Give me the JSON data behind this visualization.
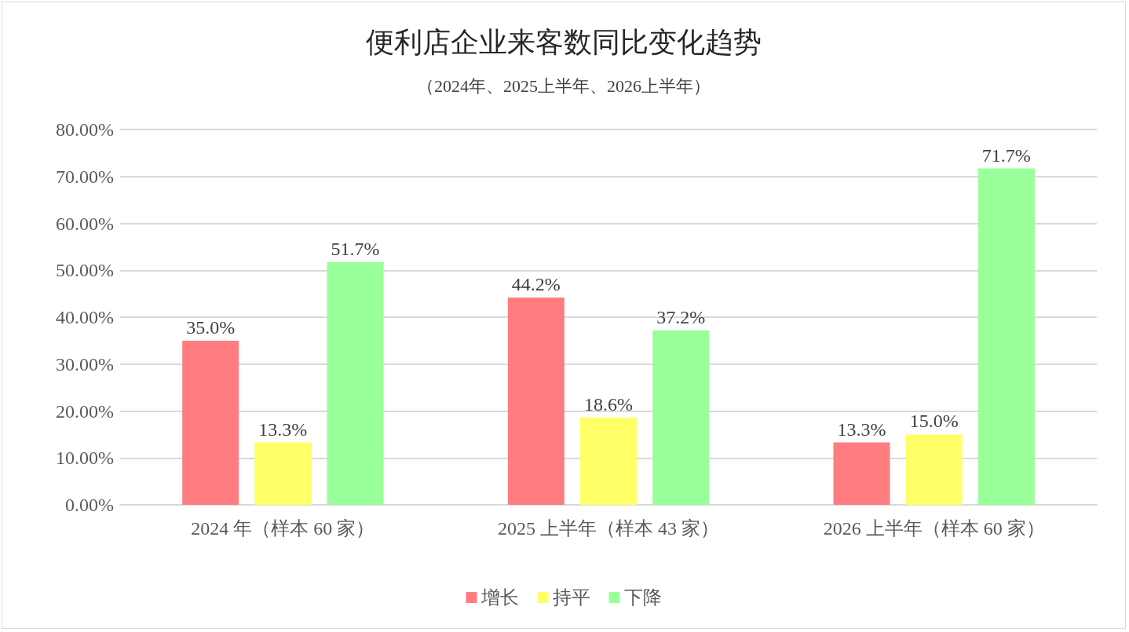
{
  "chart_data": {
    "type": "bar",
    "title": "便利店企业来客数同比变化趋势",
    "subtitle": "（2024年、2025上半年、2026上半年）",
    "categories": [
      "2024 年（样本 60 家）",
      "2025 上半年（样本 43 家）",
      "2026 上半年（样本 60 家）"
    ],
    "series": [
      {
        "name": "增长",
        "color": "#ff7c80",
        "values": [
          35.0,
          44.2,
          13.3
        ],
        "value_labels": [
          "35.0%",
          "44.2%",
          "13.3%"
        ]
      },
      {
        "name": "持平",
        "color": "#ffff66",
        "values": [
          13.3,
          18.6,
          15.0
        ],
        "value_labels": [
          "13.3%",
          "18.6%",
          "15.0%"
        ]
      },
      {
        "name": "下降",
        "color": "#99ff99",
        "values": [
          51.7,
          37.2,
          71.7
        ],
        "value_labels": [
          "51.7%",
          "37.2%",
          "71.7%"
        ]
      }
    ],
    "ylim": [
      0,
      80
    ],
    "yticks": [
      {
        "value": 0,
        "label": "0.00%"
      },
      {
        "value": 10,
        "label": "10.00%"
      },
      {
        "value": 20,
        "label": "20.00%"
      },
      {
        "value": 30,
        "label": "30.00%"
      },
      {
        "value": 40,
        "label": "40.00%"
      },
      {
        "value": 50,
        "label": "50.00%"
      },
      {
        "value": 60,
        "label": "60.00%"
      },
      {
        "value": 70,
        "label": "70.00%"
      },
      {
        "value": 80,
        "label": "80.00%"
      }
    ],
    "grid": "y",
    "legend": "bottom"
  }
}
